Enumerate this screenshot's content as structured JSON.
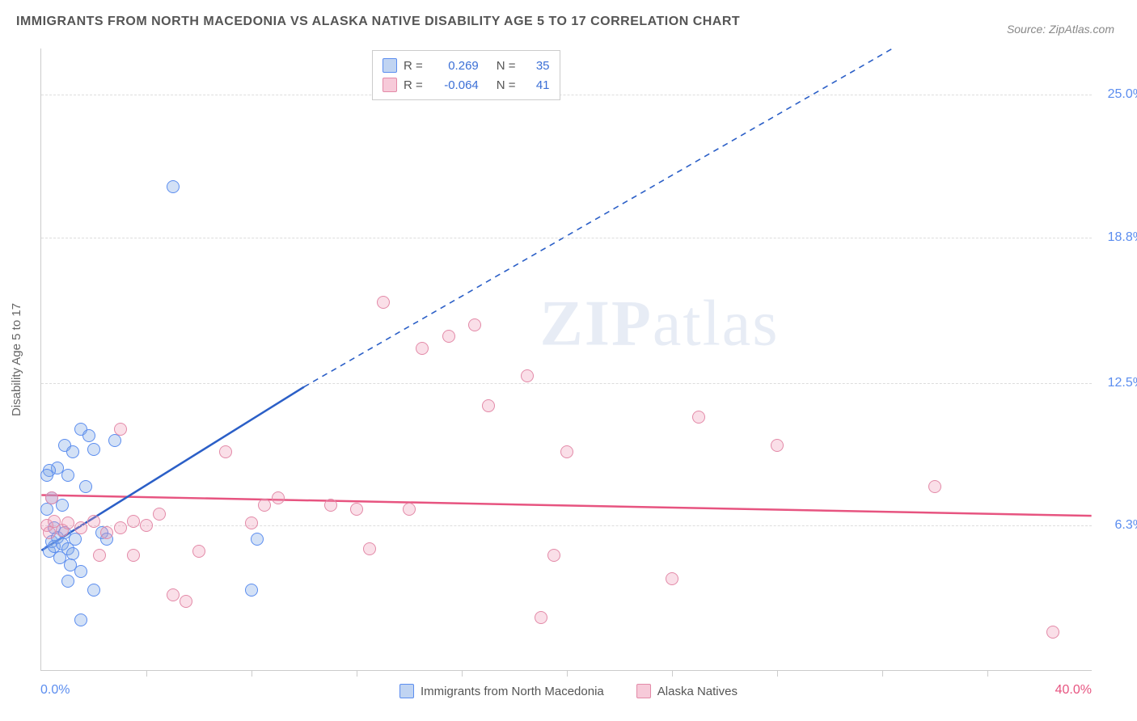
{
  "title": "IMMIGRANTS FROM NORTH MACEDONIA VS ALASKA NATIVE DISABILITY AGE 5 TO 17 CORRELATION CHART",
  "source": "Source: ZipAtlas.com",
  "y_axis_title": "Disability Age 5 to 17",
  "watermark": "ZIPatlas",
  "chart": {
    "type": "scatter",
    "xlim": [
      0,
      40
    ],
    "ylim": [
      0,
      27
    ],
    "x_start_label": "0.0%",
    "x_end_label": "40.0%",
    "y_ticks": [
      {
        "v": 6.3,
        "label": "6.3%"
      },
      {
        "v": 12.5,
        "label": "12.5%"
      },
      {
        "v": 18.8,
        "label": "18.8%"
      },
      {
        "v": 25.0,
        "label": "25.0%"
      }
    ],
    "x_ticks_minor": [
      4,
      8,
      12,
      16,
      20,
      24,
      28,
      32,
      36
    ],
    "background_color": "#ffffff",
    "grid_color": "#dddddd",
    "series": [
      {
        "name": "Immigrants from North Macedonia",
        "color_fill": "rgba(130,170,230,0.35)",
        "color_stroke": "#5b8def",
        "R": "0.269",
        "N": "35",
        "trend": {
          "x1": 0,
          "y1": 5.2,
          "x2": 10,
          "y2": 12.3,
          "solid_to_x": 10,
          "dash_to": {
            "x": 37,
            "y": 30
          }
        },
        "points": [
          [
            0.3,
            5.2
          ],
          [
            0.4,
            5.6
          ],
          [
            0.5,
            5.4
          ],
          [
            0.6,
            5.8
          ],
          [
            0.5,
            6.2
          ],
          [
            0.8,
            5.5
          ],
          [
            0.9,
            6.0
          ],
          [
            1.0,
            5.3
          ],
          [
            0.7,
            4.9
          ],
          [
            1.2,
            5.1
          ],
          [
            1.1,
            4.6
          ],
          [
            1.3,
            5.7
          ],
          [
            1.5,
            4.3
          ],
          [
            0.2,
            7.0
          ],
          [
            0.4,
            7.5
          ],
          [
            0.8,
            7.2
          ],
          [
            1.0,
            8.5
          ],
          [
            0.6,
            8.8
          ],
          [
            0.9,
            9.8
          ],
          [
            1.2,
            9.5
          ],
          [
            1.5,
            10.5
          ],
          [
            1.8,
            10.2
          ],
          [
            2.0,
            9.6
          ],
          [
            1.7,
            8.0
          ],
          [
            2.3,
            6.0
          ],
          [
            2.5,
            5.7
          ],
          [
            0.3,
            8.7
          ],
          [
            0.2,
            8.5
          ],
          [
            2.0,
            3.5
          ],
          [
            1.5,
            2.2
          ],
          [
            1.0,
            3.9
          ],
          [
            2.8,
            10.0
          ],
          [
            5.0,
            21.0
          ],
          [
            8.0,
            3.5
          ],
          [
            8.2,
            5.7
          ]
        ]
      },
      {
        "name": "Alaska Natives",
        "color_fill": "rgba(240,150,180,0.3)",
        "color_stroke": "#e38aa8",
        "R": "-0.064",
        "N": "41",
        "trend": {
          "x1": 0,
          "y1": 7.6,
          "x2": 40,
          "y2": 6.7,
          "solid_to_x": 40
        },
        "points": [
          [
            0.2,
            6.3
          ],
          [
            0.3,
            6.0
          ],
          [
            0.5,
            6.5
          ],
          [
            0.8,
            6.1
          ],
          [
            1.0,
            6.4
          ],
          [
            1.5,
            6.2
          ],
          [
            2.0,
            6.5
          ],
          [
            2.5,
            6.0
          ],
          [
            3.0,
            6.2
          ],
          [
            0.4,
            7.5
          ],
          [
            3.5,
            6.5
          ],
          [
            4.0,
            6.3
          ],
          [
            2.2,
            5.0
          ],
          [
            3.0,
            10.5
          ],
          [
            4.5,
            6.8
          ],
          [
            5.0,
            3.3
          ],
          [
            5.5,
            3.0
          ],
          [
            6.0,
            5.2
          ],
          [
            7.0,
            9.5
          ],
          [
            8.0,
            6.4
          ],
          [
            8.5,
            7.2
          ],
          [
            9.0,
            7.5
          ],
          [
            3.5,
            5.0
          ],
          [
            11.0,
            7.2
          ],
          [
            12.0,
            7.0
          ],
          [
            12.5,
            5.3
          ],
          [
            13.0,
            16.0
          ],
          [
            14.0,
            7.0
          ],
          [
            14.5,
            14.0
          ],
          [
            15.5,
            14.5
          ],
          [
            16.5,
            15.0
          ],
          [
            17.0,
            11.5
          ],
          [
            18.5,
            12.8
          ],
          [
            19.0,
            2.3
          ],
          [
            19.5,
            5.0
          ],
          [
            20.0,
            9.5
          ],
          [
            25.0,
            11.0
          ],
          [
            28.0,
            9.8
          ],
          [
            24.0,
            4.0
          ],
          [
            34.0,
            8.0
          ],
          [
            38.5,
            1.7
          ]
        ]
      }
    ]
  },
  "legend_stats": {
    "rows": [
      {
        "swatch": "blue",
        "R_label": "R =",
        "R": "0.269",
        "N_label": "N =",
        "N": "35"
      },
      {
        "swatch": "pink",
        "R_label": "R =",
        "R": "-0.064",
        "N_label": "N =",
        "N": "41"
      }
    ]
  },
  "bottom_legend": {
    "s1": "Immigrants from North Macedonia",
    "s2": "Alaska Natives"
  }
}
